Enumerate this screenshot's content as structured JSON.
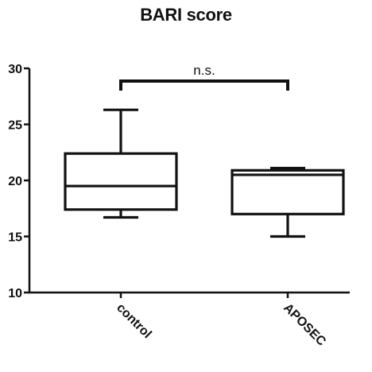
{
  "chart_data": {
    "type": "box",
    "title": "BARI score",
    "xlabel": "",
    "ylabel": "",
    "ylim": [
      10,
      30
    ],
    "yticks": [
      10,
      15,
      20,
      25,
      30
    ],
    "categories": [
      "control",
      "APOSEC"
    ],
    "boxes": [
      {
        "category": "control",
        "min": 16.7,
        "q1": 17.4,
        "median": 19.5,
        "q3": 22.4,
        "max": 26.3
      },
      {
        "category": "APOSEC",
        "min": 15.0,
        "q1": 17.0,
        "median": 20.5,
        "q3": 20.9,
        "max": 21.1
      }
    ],
    "annotations": [
      {
        "text": "n.s.",
        "from": "control",
        "to": "APOSEC"
      }
    ],
    "grid": false
  }
}
